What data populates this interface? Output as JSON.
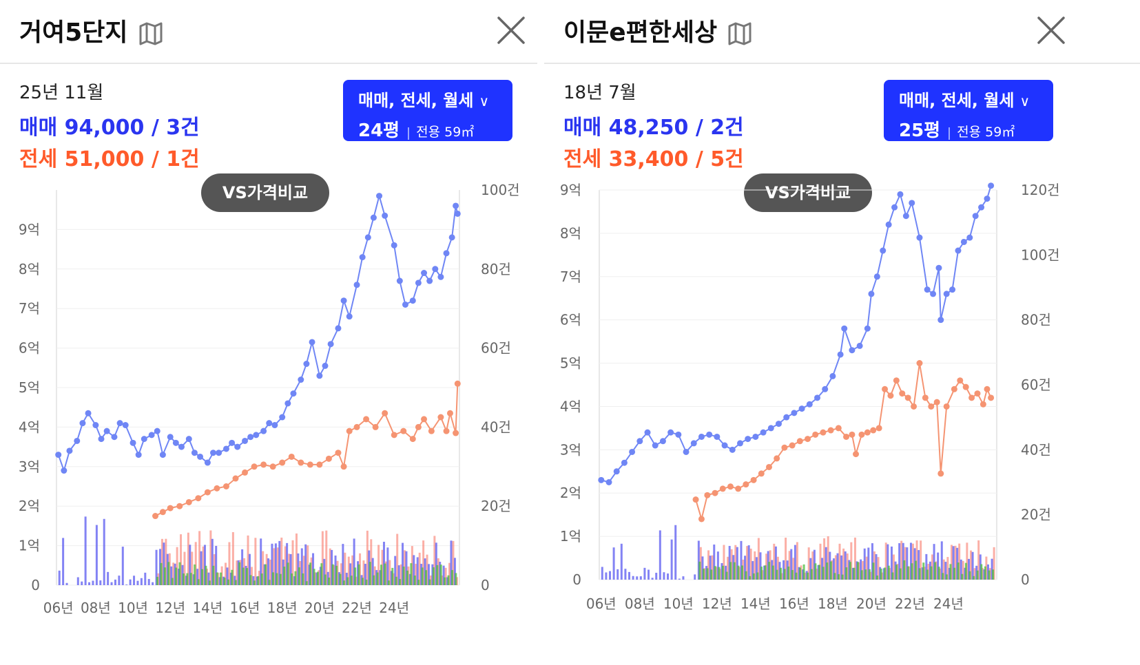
{
  "panels": [
    {
      "title": "거여5단지",
      "icons": {
        "map": "map-icon",
        "close": "close-icon"
      },
      "period": "25년 11월",
      "sale_summary": "매매 94,000 / 3건",
      "jeonse_summary": "전세 51,000 / 1건",
      "filter": {
        "types": "매매, 전세, 월세",
        "pyeong": "24평",
        "area": "전용 59㎡"
      },
      "vs_button": "VS가격비교"
    },
    {
      "title": "이문e편한세상",
      "icons": {
        "map": "map-icon",
        "close": "close-icon"
      },
      "period": "18년 7월",
      "sale_summary": "매매 48,250 / 2건",
      "jeonse_summary": "전세 33,400 / 5건",
      "filter": {
        "types": "매매, 전세, 월세",
        "pyeong": "25평",
        "area": "전용 59㎡"
      },
      "vs_button": "VS가격비교"
    }
  ],
  "colors": {
    "sale": "#2a35f0",
    "jeonse": "#ff5a2a",
    "sale_line": "#6f86f5",
    "jeonse_line": "#f59472",
    "vol_sale": "#5a5af0",
    "vol_jeonse": "#f87a6a",
    "vol_rent": "#4cbb3c",
    "button": "#1f33ff",
    "vs_button": "#555555"
  },
  "chart_data": [
    {
      "type": "line",
      "x_ticks": [
        "06년",
        "08년",
        "10년",
        "12년",
        "14년",
        "16년",
        "18년",
        "20년",
        "22년",
        "24년"
      ],
      "y_left_ticks": [
        "0",
        "1억",
        "2억",
        "3억",
        "4억",
        "5억",
        "6억",
        "7억",
        "8억",
        "9억"
      ],
      "y_left_range": [
        0,
        100000
      ],
      "y_right_ticks": [
        "0",
        "20건",
        "40건",
        "60건",
        "80건",
        "100건"
      ],
      "y_right_range": [
        0,
        100
      ],
      "series": [
        {
          "name": "매매",
          "values": [
            [
              2006.0,
              33000
            ],
            [
              2006.3,
              29000
            ],
            [
              2006.6,
              34000
            ],
            [
              2007.0,
              36500
            ],
            [
              2007.3,
              41000
            ],
            [
              2007.6,
              43500
            ],
            [
              2008.0,
              40500
            ],
            [
              2008.3,
              37000
            ],
            [
              2008.6,
              39000
            ],
            [
              2009.0,
              37500
            ],
            [
              2009.3,
              41000
            ],
            [
              2009.6,
              40500
            ],
            [
              2010.0,
              36000
            ],
            [
              2010.3,
              33000
            ],
            [
              2010.6,
              37000
            ],
            [
              2011.0,
              38000
            ],
            [
              2011.3,
              39000
            ],
            [
              2011.6,
              33000
            ],
            [
              2012.0,
              37500
            ],
            [
              2012.3,
              36000
            ],
            [
              2012.6,
              35000
            ],
            [
              2013.0,
              37000
            ],
            [
              2013.3,
              33500
            ],
            [
              2013.6,
              32500
            ],
            [
              2014.0,
              31000
            ],
            [
              2014.3,
              33500
            ],
            [
              2014.6,
              33500
            ],
            [
              2015.0,
              34500
            ],
            [
              2015.3,
              36000
            ],
            [
              2015.6,
              35000
            ],
            [
              2016.0,
              36500
            ],
            [
              2016.3,
              37500
            ],
            [
              2016.6,
              38000
            ],
            [
              2017.0,
              39000
            ],
            [
              2017.3,
              41000
            ],
            [
              2017.6,
              40500
            ],
            [
              2018.0,
              42500
            ],
            [
              2018.3,
              46000
            ],
            [
              2018.6,
              48500
            ],
            [
              2019.0,
              52000
            ],
            [
              2019.3,
              56000
            ],
            [
              2019.6,
              61500
            ],
            [
              2020.0,
              53000
            ],
            [
              2020.3,
              55500
            ],
            [
              2020.6,
              61000
            ],
            [
              2021.0,
              65000
            ],
            [
              2021.3,
              72000
            ],
            [
              2021.6,
              68000
            ],
            [
              2022.0,
              76000
            ],
            [
              2022.3,
              83000
            ],
            [
              2022.6,
              88000
            ],
            [
              2022.9,
              93000
            ],
            [
              2023.2,
              98500
            ],
            [
              2023.5,
              93500
            ],
            [
              2024.0,
              86000
            ],
            [
              2024.3,
              77000
            ],
            [
              2024.6,
              71000
            ],
            [
              2025.0,
              72000
            ],
            [
              2025.3,
              76500
            ],
            [
              2025.6,
              79000
            ],
            [
              2025.9,
              77000
            ],
            [
              2026.2,
              80000
            ],
            [
              2026.5,
              78000
            ],
            [
              2026.8,
              84000
            ],
            [
              2027.1,
              88000
            ],
            [
              2027.3,
              96000
            ],
            [
              2027.4,
              94000
            ]
          ]
        },
        {
          "name": "전세",
          "values": [
            [
              2011.2,
              17500
            ],
            [
              2011.6,
              18500
            ],
            [
              2012.0,
              19500
            ],
            [
              2012.5,
              20000
            ],
            [
              2013.0,
              21000
            ],
            [
              2013.5,
              22000
            ],
            [
              2014.0,
              23500
            ],
            [
              2014.5,
              24500
            ],
            [
              2015.0,
              25000
            ],
            [
              2015.5,
              27000
            ],
            [
              2016.0,
              28500
            ],
            [
              2016.5,
              30000
            ],
            [
              2017.0,
              30500
            ],
            [
              2017.5,
              30000
            ],
            [
              2018.0,
              31000
            ],
            [
              2018.5,
              32500
            ],
            [
              2019.0,
              31000
            ],
            [
              2019.5,
              30500
            ],
            [
              2020.0,
              30500
            ],
            [
              2020.5,
              32000
            ],
            [
              2021.0,
              33500
            ],
            [
              2021.3,
              30000
            ],
            [
              2021.6,
              39000
            ],
            [
              2022.0,
              40000
            ],
            [
              2022.5,
              42000
            ],
            [
              2023.0,
              40000
            ],
            [
              2023.5,
              43500
            ],
            [
              2024.0,
              38000
            ],
            [
              2024.5,
              39000
            ],
            [
              2025.0,
              37000
            ],
            [
              2025.3,
              40000
            ],
            [
              2025.6,
              42000
            ],
            [
              2026.0,
              39000
            ],
            [
              2026.5,
              42500
            ],
            [
              2026.8,
              39000
            ],
            [
              2027.0,
              43500
            ],
            [
              2027.3,
              38500
            ],
            [
              2027.4,
              51000
            ]
          ]
        }
      ]
    },
    {
      "type": "line",
      "x_ticks": [
        "06년",
        "08년",
        "10년",
        "12년",
        "14년",
        "16년",
        "18년",
        "20년",
        "22년",
        "24년"
      ],
      "y_left_ticks": [
        "0",
        "1억",
        "2억",
        "3억",
        "4억",
        "5억",
        "6억",
        "7억",
        "8억",
        "9억"
      ],
      "y_left_range": [
        0,
        90000
      ],
      "y_right_ticks": [
        "0",
        "20건",
        "40건",
        "60건",
        "80건",
        "100건",
        "120건"
      ],
      "y_right_range": [
        0,
        120
      ],
      "series": [
        {
          "name": "매매",
          "values": [
            [
              2006.0,
              23000
            ],
            [
              2006.4,
              22500
            ],
            [
              2006.8,
              25000
            ],
            [
              2007.2,
              27000
            ],
            [
              2007.6,
              29500
            ],
            [
              2008.0,
              32000
            ],
            [
              2008.4,
              34000
            ],
            [
              2008.8,
              31000
            ],
            [
              2009.2,
              32000
            ],
            [
              2009.6,
              34000
            ],
            [
              2010.0,
              33500
            ],
            [
              2010.4,
              29500
            ],
            [
              2010.8,
              31500
            ],
            [
              2011.2,
              33000
            ],
            [
              2011.6,
              33500
            ],
            [
              2012.0,
              33000
            ],
            [
              2012.4,
              31000
            ],
            [
              2012.8,
              30000
            ],
            [
              2013.2,
              31500
            ],
            [
              2013.6,
              32500
            ],
            [
              2014.0,
              33000
            ],
            [
              2014.4,
              34000
            ],
            [
              2014.8,
              35000
            ],
            [
              2015.2,
              36000
            ],
            [
              2015.6,
              37500
            ],
            [
              2016.0,
              38500
            ],
            [
              2016.4,
              39500
            ],
            [
              2016.8,
              40500
            ],
            [
              2017.2,
              42000
            ],
            [
              2017.6,
              44000
            ],
            [
              2018.0,
              47000
            ],
            [
              2018.4,
              52000
            ],
            [
              2018.6,
              58000
            ],
            [
              2019.0,
              53000
            ],
            [
              2019.4,
              54000
            ],
            [
              2019.8,
              58000
            ],
            [
              2020.0,
              66000
            ],
            [
              2020.3,
              70000
            ],
            [
              2020.6,
              76000
            ],
            [
              2020.9,
              82000
            ],
            [
              2021.2,
              86000
            ],
            [
              2021.5,
              89000
            ],
            [
              2021.8,
              84000
            ],
            [
              2022.1,
              87000
            ],
            [
              2022.5,
              79000
            ],
            [
              2022.9,
              67000
            ],
            [
              2023.2,
              66000
            ],
            [
              2023.5,
              72000
            ],
            [
              2023.6,
              60000
            ],
            [
              2023.9,
              66000
            ],
            [
              2024.2,
              67000
            ],
            [
              2024.5,
              76000
            ],
            [
              2024.8,
              78000
            ],
            [
              2025.1,
              79000
            ],
            [
              2025.4,
              84000
            ],
            [
              2025.7,
              86000
            ],
            [
              2026.0,
              88000
            ],
            [
              2026.2,
              91000
            ]
          ]
        },
        {
          "name": "전세",
          "values": [
            [
              2010.9,
              18500
            ],
            [
              2011.2,
              14000
            ],
            [
              2011.5,
              19500
            ],
            [
              2011.9,
              20000
            ],
            [
              2012.3,
              21000
            ],
            [
              2012.7,
              21500
            ],
            [
              2013.1,
              21000
            ],
            [
              2013.5,
              22000
            ],
            [
              2013.9,
              23000
            ],
            [
              2014.3,
              24500
            ],
            [
              2014.7,
              26000
            ],
            [
              2015.1,
              28000
            ],
            [
              2015.5,
              30500
            ],
            [
              2015.9,
              31000
            ],
            [
              2016.3,
              32000
            ],
            [
              2016.7,
              32500
            ],
            [
              2017.1,
              33500
            ],
            [
              2017.5,
              34000
            ],
            [
              2017.9,
              34500
            ],
            [
              2018.3,
              35000
            ],
            [
              2018.7,
              33000
            ],
            [
              2019.0,
              33500
            ],
            [
              2019.2,
              29000
            ],
            [
              2019.5,
              33500
            ],
            [
              2019.8,
              34000
            ],
            [
              2020.1,
              34500
            ],
            [
              2020.4,
              35000
            ],
            [
              2020.7,
              44000
            ],
            [
              2021.0,
              42500
            ],
            [
              2021.3,
              46000
            ],
            [
              2021.6,
              43000
            ],
            [
              2021.9,
              42000
            ],
            [
              2022.2,
              40000
            ],
            [
              2022.5,
              50000
            ],
            [
              2022.8,
              42000
            ],
            [
              2023.1,
              40000
            ],
            [
              2023.4,
              41000
            ],
            [
              2023.6,
              24500
            ],
            [
              2023.9,
              40000
            ],
            [
              2024.3,
              44000
            ],
            [
              2024.6,
              46000
            ],
            [
              2024.9,
              44500
            ],
            [
              2025.2,
              42000
            ],
            [
              2025.5,
              43000
            ],
            [
              2025.8,
              40500
            ],
            [
              2026.0,
              44000
            ],
            [
              2026.2,
              42000
            ]
          ]
        }
      ]
    }
  ]
}
